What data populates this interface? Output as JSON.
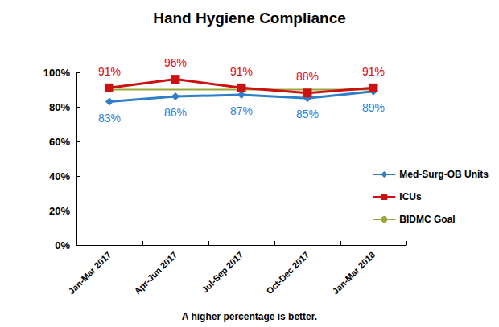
{
  "chart_data": {
    "type": "line",
    "title": "Hand Hygiene Compliance",
    "annotations": [
      "A higher percentage is better."
    ],
    "categories": [
      "Jan-Mar 2017",
      "Apr-Jun 2017",
      "Jul-Sep 2017",
      "Oct-Dec 2017",
      "Jan-Mar 2018"
    ],
    "series": [
      {
        "name": "Med-Surg-OB Units",
        "color": "#2f7fc8",
        "marker": "diamond",
        "data_labels": true,
        "values": [
          83,
          86,
          87,
          85,
          89
        ],
        "value_labels": [
          "83%",
          "86%",
          "87%",
          "85%",
          "89%"
        ]
      },
      {
        "name": "ICUs",
        "color": "#cc1111",
        "marker": "square",
        "data_labels": true,
        "values": [
          91,
          96,
          91,
          88,
          91
        ],
        "value_labels": [
          "91%",
          "96%",
          "91%",
          "88%",
          "91%"
        ]
      },
      {
        "name": "BIDMC Goal",
        "color": "#9aa53a",
        "marker": "none",
        "data_labels": false,
        "values": [
          90,
          90,
          90,
          90,
          90
        ]
      }
    ],
    "ylim": [
      0,
      100
    ],
    "yticks": [
      {
        "value": 0,
        "label": "0%"
      },
      {
        "value": 20,
        "label": "20%"
      },
      {
        "value": 40,
        "label": "40%"
      },
      {
        "value": 60,
        "label": "60%"
      },
      {
        "value": 80,
        "label": "80%"
      },
      {
        "value": 100,
        "label": "100%"
      }
    ],
    "grid": false,
    "legend": "right"
  }
}
